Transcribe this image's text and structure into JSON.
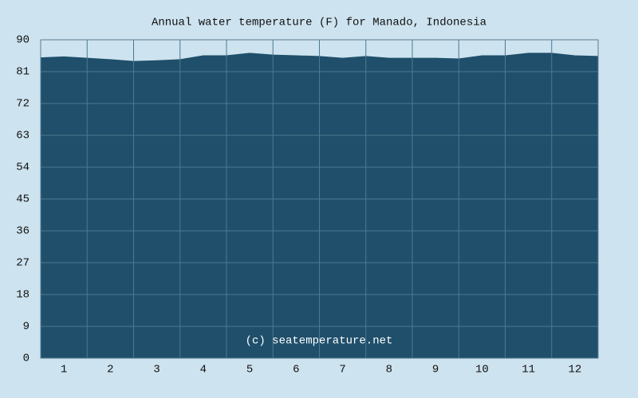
{
  "chart_data": {
    "type": "area",
    "title": "Annual water temperature (F) for Manado, Indonesia",
    "annotation": "(c) seatemperature.net",
    "x": [
      0.5,
      1,
      1.5,
      2,
      2.5,
      3,
      3.5,
      4,
      4.5,
      5,
      5.5,
      6,
      6.5,
      7,
      7.5,
      8,
      8.5,
      9,
      9.5,
      10,
      10.5,
      11,
      11.5,
      12,
      12.5
    ],
    "values": [
      84.9,
      85.2,
      84.8,
      84.4,
      83.9,
      84.1,
      84.4,
      85.5,
      85.5,
      86.2,
      85.7,
      85.5,
      85.3,
      84.8,
      85.3,
      84.8,
      84.8,
      84.8,
      84.6,
      85.5,
      85.5,
      86.2,
      86.2,
      85.5,
      85.3
    ],
    "color": "#1f4f6b",
    "xlim": [
      0.5,
      12.5
    ],
    "xticks": [
      1,
      2,
      3,
      4,
      5,
      6,
      7,
      8,
      9,
      10,
      11,
      12
    ],
    "ylim": [
      0,
      90
    ],
    "yticks": [
      0,
      9,
      18,
      27,
      36,
      45,
      54,
      63,
      72,
      81,
      90
    ],
    "grid": true
  }
}
